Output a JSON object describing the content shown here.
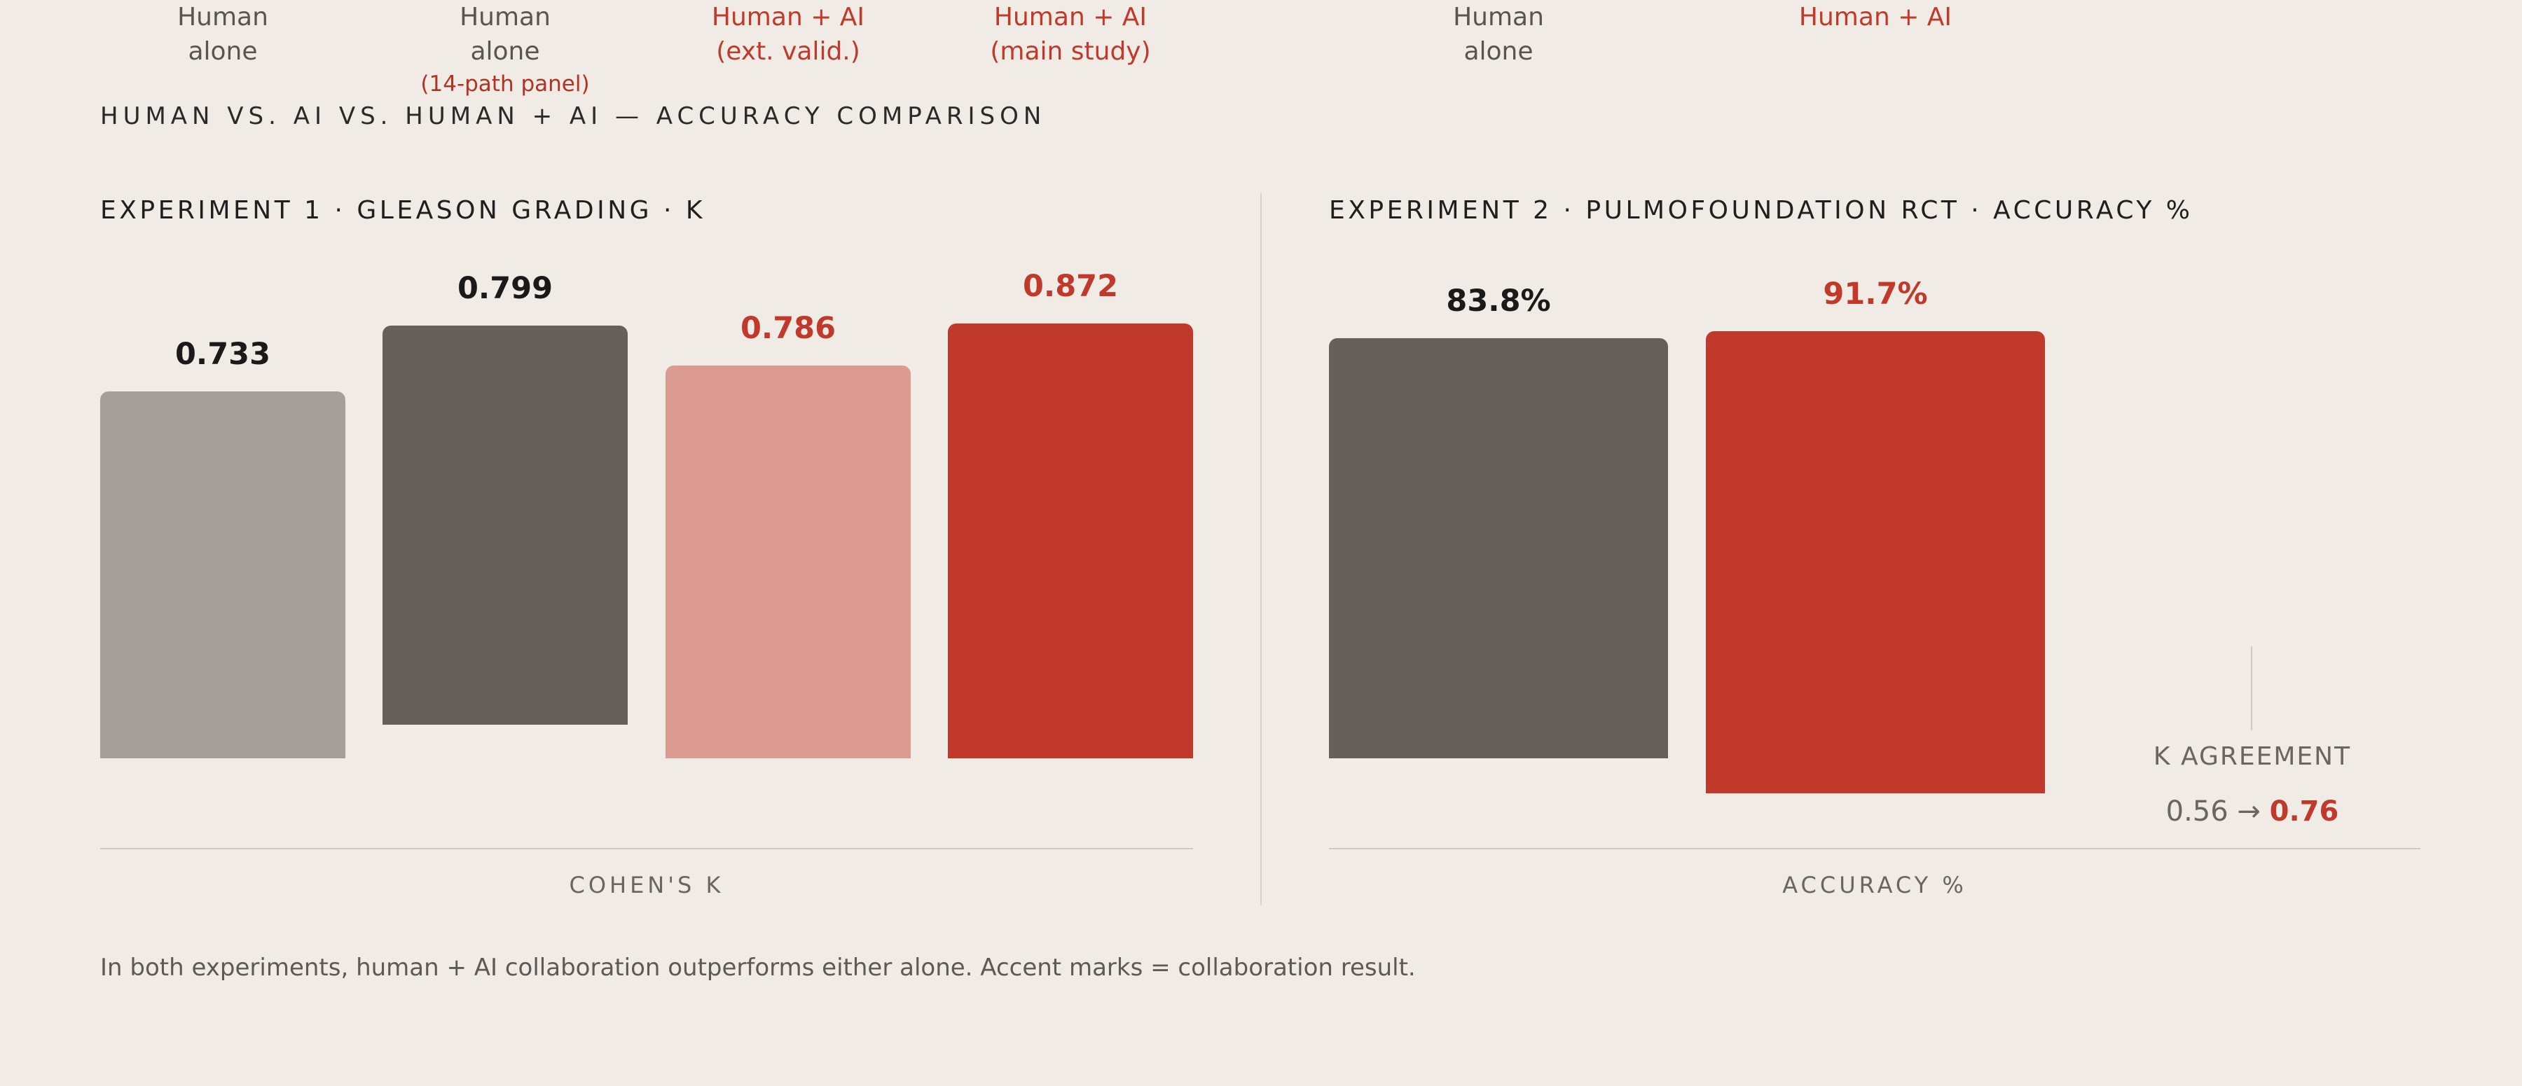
{
  "title": "HUMAN VS. AI VS. HUMAN + AI — ACCURACY COMPARISON",
  "footnote": "In both experiments, human + AI collaboration outperforms either alone. Accent marks = collaboration result.",
  "colors": {
    "background": "#f0ebe5",
    "human_light": "#a49f98",
    "human_dark": "#675f59",
    "ai_light": "#dc9b91",
    "accent": "#c0392b",
    "text_dark": "#1a1a1a"
  },
  "chart_data": [
    {
      "type": "bar",
      "title": "EXPERIMENT 1 · GLEASON GRADING · K",
      "xlabel": "COHEN'S K",
      "ylabel": "",
      "categories": [
        {
          "lines": [
            "Human",
            "alone"
          ],
          "note": ""
        },
        {
          "lines": [
            "Human",
            "alone"
          ],
          "note": "(14-path panel)"
        },
        {
          "lines": [
            "Human + AI",
            "(ext. valid.)"
          ],
          "note": ""
        },
        {
          "lines": [
            "Human + AI",
            "(main study)"
          ],
          "note": ""
        }
      ],
      "values": [
        0.733,
        0.799,
        0.786,
        0.872
      ],
      "value_labels": [
        "0.733",
        "0.799",
        "0.786",
        "0.872"
      ],
      "bar_colors": [
        "#a49f98",
        "#675f59",
        "#dc9b91",
        "#c0392b"
      ],
      "label_accent": [
        false,
        false,
        true,
        true
      ],
      "ylim": [
        0,
        1
      ],
      "grid": false
    },
    {
      "type": "bar",
      "title": "EXPERIMENT 2 · PULMOFOUNDATION RCT · ACCURACY %",
      "xlabel": "ACCURACY %",
      "ylabel": "",
      "categories": [
        {
          "lines": [
            "Human",
            "alone"
          ],
          "note": ""
        },
        {
          "lines": [
            "Human + AI"
          ],
          "note": ""
        }
      ],
      "values": [
        83.8,
        91.7
      ],
      "value_labels": [
        "83.8%",
        "91.7%"
      ],
      "bar_colors": [
        "#675f59",
        "#c0392b"
      ],
      "label_accent": [
        false,
        true
      ],
      "ylim": [
        0,
        100
      ],
      "grid": false,
      "annotation": {
        "label": "K AGREEMENT",
        "from": "0.56",
        "arrow": "→",
        "to": "0.76"
      }
    }
  ]
}
